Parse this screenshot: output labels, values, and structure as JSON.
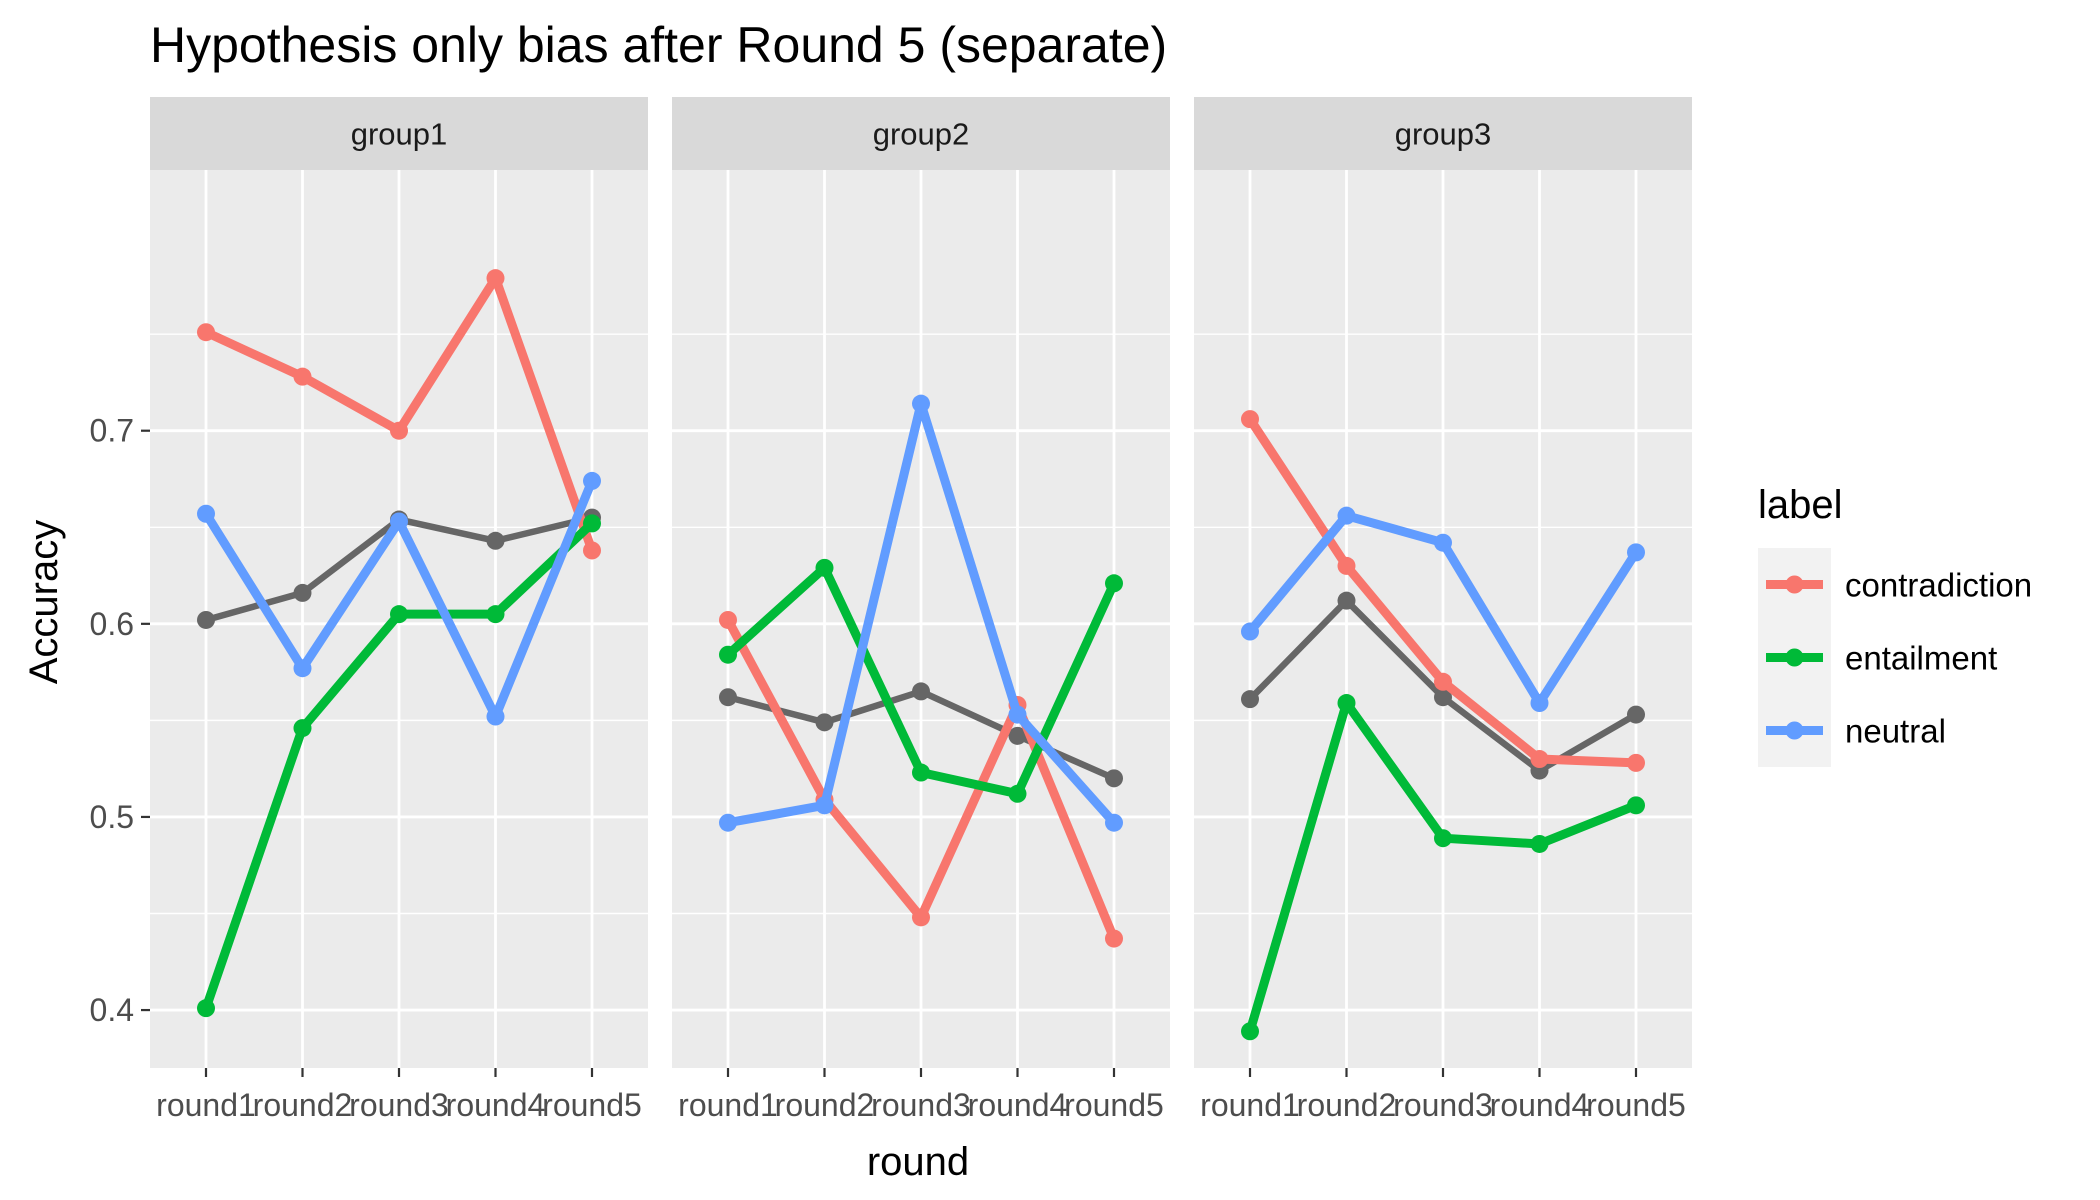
{
  "chart_data": {
    "type": "line",
    "title": "Hypothesis only bias after Round 5 (separate)",
    "xlabel": "round",
    "ylabel": "Accuracy",
    "ylim": [
      0.37,
      0.835
    ],
    "y_ticks": [
      "0.4",
      "0.5",
      "0.6",
      "0.7"
    ],
    "y_tick_values": [
      0.4,
      0.5,
      0.6,
      0.7
    ],
    "categories": [
      "round1",
      "round2",
      "round3",
      "round4",
      "round5"
    ],
    "grid": true,
    "legend": {
      "title": "label",
      "position": "right",
      "entries": [
        {
          "name": "contradiction",
          "color": "#F8766D"
        },
        {
          "name": "entailment",
          "color": "#00BA38"
        },
        {
          "name": "neutral",
          "color": "#619CFF"
        }
      ]
    },
    "panels": [
      {
        "strip": "group1",
        "series": [
          {
            "name": "",
            "color": "#666666",
            "values": [
              0.602,
              0.616,
              0.654,
              0.643,
              0.655
            ]
          },
          {
            "name": "contradiction",
            "color": "#F8766D",
            "values": [
              0.751,
              0.728,
              0.7,
              0.779,
              0.638
            ]
          },
          {
            "name": "entailment",
            "color": "#00BA38",
            "values": [
              0.401,
              0.546,
              0.605,
              0.605,
              0.652
            ]
          },
          {
            "name": "neutral",
            "color": "#619CFF",
            "values": [
              0.657,
              0.577,
              0.653,
              0.552,
              0.674
            ]
          }
        ]
      },
      {
        "strip": "group2",
        "series": [
          {
            "name": "",
            "color": "#666666",
            "values": [
              0.562,
              0.549,
              0.565,
              0.542,
              0.52
            ]
          },
          {
            "name": "contradiction",
            "color": "#F8766D",
            "values": [
              0.602,
              0.509,
              0.448,
              0.558,
              0.437
            ]
          },
          {
            "name": "entailment",
            "color": "#00BA38",
            "values": [
              0.584,
              0.629,
              0.523,
              0.512,
              0.621
            ]
          },
          {
            "name": "neutral",
            "color": "#619CFF",
            "values": [
              0.497,
              0.506,
              0.714,
              0.553,
              0.497
            ]
          }
        ]
      },
      {
        "strip": "group3",
        "series": [
          {
            "name": "",
            "color": "#666666",
            "values": [
              0.561,
              0.612,
              0.562,
              0.524,
              0.553
            ]
          },
          {
            "name": "contradiction",
            "color": "#F8766D",
            "values": [
              0.706,
              0.63,
              0.57,
              0.53,
              0.528
            ]
          },
          {
            "name": "entailment",
            "color": "#00BA38",
            "values": [
              0.389,
              0.559,
              0.489,
              0.486,
              0.506
            ]
          },
          {
            "name": "neutral",
            "color": "#619CFF",
            "values": [
              0.596,
              0.656,
              0.642,
              0.559,
              0.637
            ]
          }
        ]
      }
    ]
  }
}
